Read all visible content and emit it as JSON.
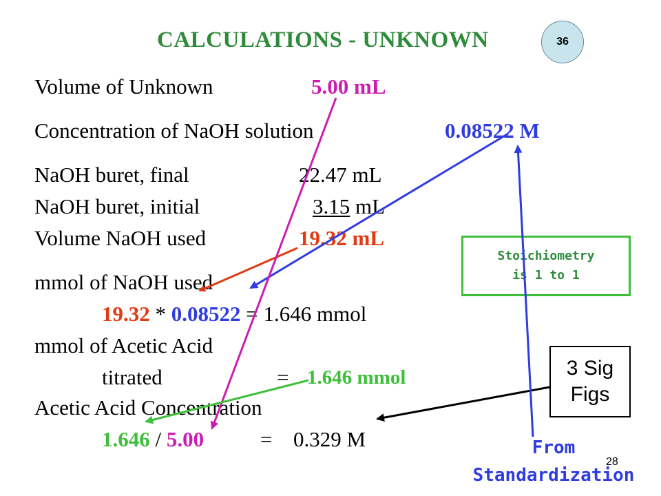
{
  "slide": {
    "title": "CALCULATIONS - UNKNOWN",
    "badge": "36",
    "page_number": "28"
  },
  "lines": {
    "vol_unknown_label": "Volume of Unknown",
    "vol_unknown_value": "5.00 mL",
    "naoh_conc_label": "Concentration of NaOH solution",
    "naoh_conc_value": "0.08522 M",
    "buret_final_label": "NaOH buret, final",
    "buret_final_value": "22.47 mL",
    "buret_initial_label": "NaOH buret, initial",
    "buret_initial_num": "3.15",
    "buret_initial_unit": "mL",
    "vol_used_label": "Volume NaOH used",
    "vol_used_value": "19.32 mL",
    "mmol_naoh_label": "mmol of NaOH used",
    "mmol_calc_a": "19.32",
    "mmol_calc_op": "*",
    "mmol_calc_b": "0.08522",
    "mmol_calc_result": "=  1.646 mmol",
    "mmol_acetic_label": "mmol of Acetic Acid",
    "titrated_label": "titrated",
    "titrated_eq": "=",
    "titrated_value": "1.646 mmol",
    "acetic_conc_label": "Acetic Acid Concentration",
    "final_a": "1.646",
    "final_op": "/",
    "final_b": "5.00",
    "final_eq": "=",
    "final_result": "0.329 M"
  },
  "notes": {
    "stoich_line1": "Stoichiometry",
    "stoich_line2": "is 1 to 1",
    "sigfigs_line1": "3 Sig",
    "sigfigs_line2": "Figs",
    "from_line1": "From",
    "from_line2": "Standardization"
  },
  "colors": {
    "title_green": "#2e8b3a",
    "magenta": "#cc1db0",
    "blue": "#2f3ce0",
    "red": "#e23a12",
    "green": "#3dbf3a"
  }
}
